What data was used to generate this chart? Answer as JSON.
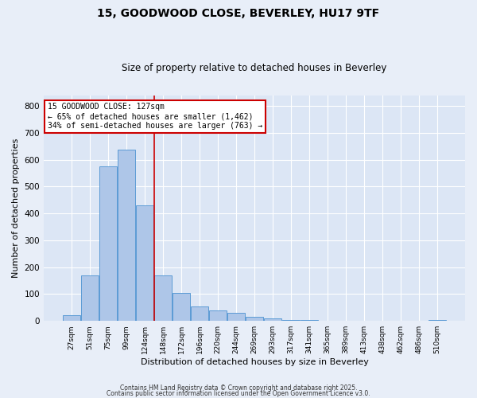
{
  "title1": "15, GOODWOOD CLOSE, BEVERLEY, HU17 9TF",
  "title2": "Size of property relative to detached houses in Beverley",
  "xlabel": "Distribution of detached houses by size in Beverley",
  "ylabel": "Number of detached properties",
  "bar_labels": [
    "27sqm",
    "51sqm",
    "75sqm",
    "99sqm",
    "124sqm",
    "148sqm",
    "172sqm",
    "196sqm",
    "220sqm",
    "244sqm",
    "269sqm",
    "293sqm",
    "317sqm",
    "341sqm",
    "365sqm",
    "389sqm",
    "413sqm",
    "438sqm",
    "462sqm",
    "486sqm",
    "510sqm"
  ],
  "bar_values": [
    20,
    168,
    575,
    638,
    430,
    170,
    103,
    55,
    38,
    30,
    15,
    10,
    5,
    3,
    2,
    0,
    0,
    0,
    0,
    0,
    5
  ],
  "bar_color": "#aec6e8",
  "bar_edge_color": "#5b9bd5",
  "vline_x": 4.5,
  "vline_color": "#cc0000",
  "annotation_line1": "15 GOODWOOD CLOSE: 127sqm",
  "annotation_line2": "← 65% of detached houses are smaller (1,462)",
  "annotation_line3": "34% of semi-detached houses are larger (763) →",
  "annotation_box_color": "#ffffff",
  "annotation_box_edge": "#cc0000",
  "ylim": [
    0,
    840
  ],
  "yticks": [
    0,
    100,
    200,
    300,
    400,
    500,
    600,
    700,
    800
  ],
  "bg_color": "#dce6f5",
  "grid_color": "#ffffff",
  "fig_bg_color": "#e8eef8",
  "footer1": "Contains HM Land Registry data © Crown copyright and database right 2025.",
  "footer2": "Contains public sector information licensed under the Open Government Licence v3.0."
}
